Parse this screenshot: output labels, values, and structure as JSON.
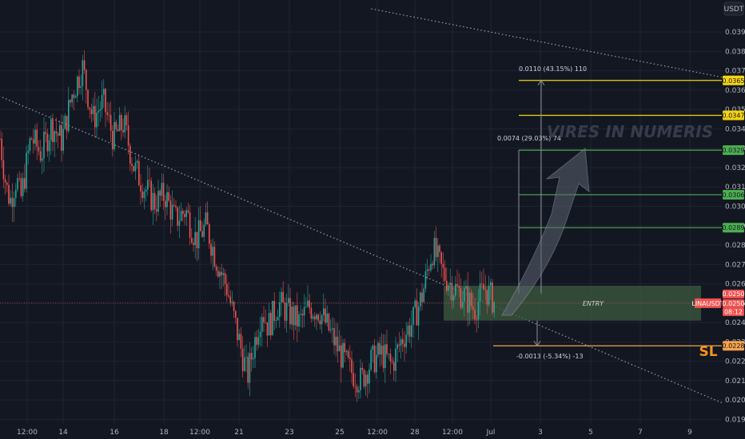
{
  "chart_data": {
    "type": "candlestick",
    "title": "",
    "currency_label": "USDT",
    "symbol_tag": "LINAUSDT",
    "countdown": "08:12",
    "ylim": [
      0.0184,
      0.0402
    ],
    "price_ticks": [
      "0.0190",
      "0.0200",
      "0.0210",
      "0.0220",
      "0.0230",
      "0.0240",
      "0.0250",
      "0.0260",
      "0.0270",
      "0.0280",
      "0.0290",
      "0.0300",
      "0.0310",
      "0.0320",
      "0.0330",
      "0.0340",
      "0.0350",
      "0.0360",
      "0.0370",
      "0.0380",
      "0.0390"
    ],
    "time_ticks": [
      "12:00",
      "14",
      "16",
      "18",
      "12:00",
      "21",
      "23",
      "25",
      "12:00",
      "28",
      "12:00",
      "Jul",
      "3",
      "5",
      "7",
      "9"
    ],
    "price_series": [
      [
        0.0,
        0.0335
      ],
      [
        0.03,
        0.031
      ],
      [
        0.05,
        0.0303
      ],
      [
        0.08,
        0.0315
      ],
      [
        0.1,
        0.0303
      ],
      [
        0.15,
        0.0336
      ],
      [
        0.2,
        0.0327
      ],
      [
        0.25,
        0.0342
      ],
      [
        0.3,
        0.0334
      ],
      [
        0.35,
        0.0358
      ],
      [
        0.4,
        0.0372
      ],
      [
        0.45,
        0.0345
      ],
      [
        0.5,
        0.0354
      ],
      [
        0.55,
        0.0335
      ],
      [
        0.6,
        0.0343
      ],
      [
        0.65,
        0.032
      ],
      [
        0.7,
        0.031
      ],
      [
        0.75,
        0.0302
      ],
      [
        0.8,
        0.0306
      ],
      [
        0.85,
        0.0293
      ],
      [
        0.9,
        0.0298
      ],
      [
        0.95,
        0.0283
      ],
      [
        1.0,
        0.029
      ],
      [
        1.05,
        0.0272
      ],
      [
        1.1,
        0.0258
      ],
      [
        1.15,
        0.0235
      ],
      [
        1.2,
        0.0212
      ],
      [
        1.23,
        0.0228
      ],
      [
        1.27,
        0.0247
      ],
      [
        1.3,
        0.0238
      ],
      [
        1.35,
        0.025
      ],
      [
        1.4,
        0.0245
      ],
      [
        1.45,
        0.024
      ],
      [
        1.5,
        0.0248
      ],
      [
        1.55,
        0.0246
      ],
      [
        1.6,
        0.0235
      ],
      [
        1.65,
        0.0224
      ],
      [
        1.7,
        0.0215
      ],
      [
        1.75,
        0.021
      ],
      [
        1.8,
        0.022
      ],
      [
        1.85,
        0.0224
      ],
      [
        1.9,
        0.0218
      ],
      [
        1.95,
        0.0232
      ],
      [
        2.0,
        0.024
      ],
      [
        2.05,
        0.0255
      ],
      [
        2.08,
        0.0271
      ],
      [
        2.1,
        0.0278
      ],
      [
        2.15,
        0.0265
      ],
      [
        2.2,
        0.0258
      ],
      [
        2.25,
        0.0254
      ],
      [
        2.3,
        0.0247
      ],
      [
        2.35,
        0.0258
      ],
      [
        2.4,
        0.025
      ]
    ],
    "current_price": "0.0250",
    "trendlines": [
      {
        "from": [
          -1.0,
          0.0402
        ],
        "to": [
          4.0,
          0.0176
        ],
        "style": "dotted"
      },
      {
        "from": [
          1.8,
          0.0402
        ],
        "to": [
          4.4,
          0.0348
        ],
        "style": "dotted"
      }
    ],
    "entry_zone": {
      "label": "ENTRY",
      "top": 0.0259,
      "bottom": 0.0241,
      "x_start": 2.1,
      "x_end": 4.4
    },
    "levels": [
      {
        "value": 0.0365,
        "label": "0.0365",
        "color": "#f5d312"
      },
      {
        "value": 0.0347,
        "label": "0.0347",
        "color": "#f5d312"
      },
      {
        "value": 0.0329,
        "label": "0.0329",
        "color": "#4caf50"
      },
      {
        "value": 0.0306,
        "label": "0.0306",
        "color": "#4caf50"
      },
      {
        "value": 0.0289,
        "label": "0.0289",
        "color": "#4caf50"
      },
      {
        "value": 0.0228,
        "label": "0.0228",
        "color": "#f7a34a"
      }
    ],
    "measurements": [
      {
        "text": "0.0110 (43.15%) 110",
        "from": 0.0255,
        "to": 0.0365
      },
      {
        "text": "0.0074 (29.03%) 74",
        "from": 0.0255,
        "to": 0.0329
      },
      {
        "text": "-0.0013 (-5.34%) -13",
        "from": 0.0241,
        "to": 0.0228
      }
    ],
    "watermark": "VIRES IN NUMERIS",
    "sl_label": "SL",
    "colors": {
      "background": "#131722",
      "up": "#26a69a",
      "down": "#ef5350",
      "grid": "#1f2433",
      "price_tag": "#f05350",
      "entry_fill": "#3d5b3f"
    }
  }
}
